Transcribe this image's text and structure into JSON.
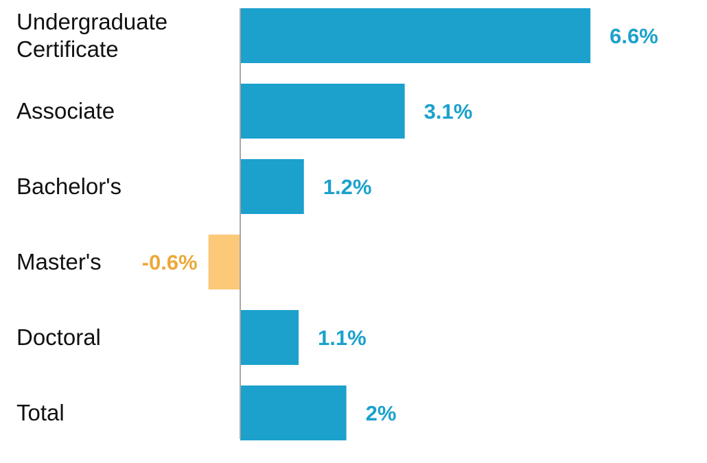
{
  "chart_data": {
    "type": "bar",
    "orientation": "horizontal",
    "categories": [
      [
        "Undergraduate",
        "Certificate"
      ],
      [
        "Associate"
      ],
      [
        "Bachelor's"
      ],
      [
        "Master's"
      ],
      [
        "Doctoral"
      ],
      [
        "Total"
      ]
    ],
    "values": [
      6.6,
      3.1,
      1.2,
      -0.6,
      1.1,
      2
    ],
    "value_labels": [
      "6.6%",
      "3.1%",
      "1.2%",
      "-0.6%",
      "1.1%",
      "2%"
    ],
    "title": "",
    "xlabel": "",
    "ylabel": "",
    "xlim": [
      -0.6,
      6.6
    ],
    "grid": false,
    "colors": {
      "positive": "#1ba1cc",
      "negative": "#fcc978",
      "axis": "#a6a6a6"
    }
  }
}
